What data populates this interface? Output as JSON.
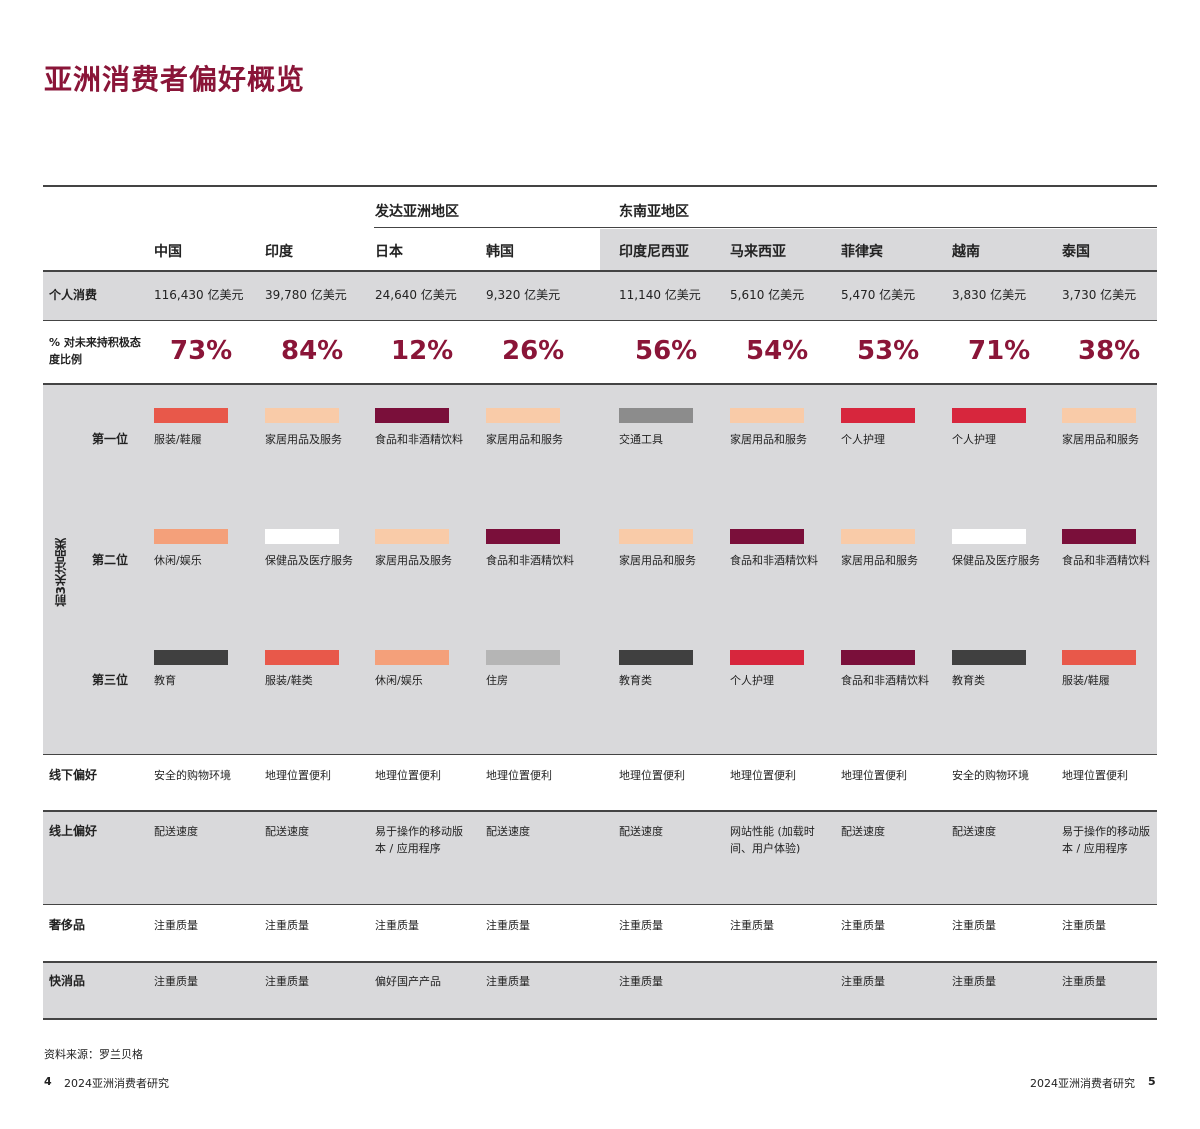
{
  "title": "亚洲消费者偏好概览",
  "groups": {
    "developed": "发达亚洲地区",
    "southeast": "东南亚地区"
  },
  "countries": [
    "中国",
    "印度",
    "日本",
    "韩国",
    "印度尼西亚",
    "马来西亚",
    "菲律宾",
    "越南",
    "泰国"
  ],
  "row_labels": {
    "consumption": "个人消费",
    "attitude": "% 对未来持积极态度比例",
    "top3": "前3关注品类",
    "rank1": "第一位",
    "rank2": "第二位",
    "rank3": "第三位",
    "offline": "线下偏好",
    "online": "线上偏好",
    "luxury": "奢侈品",
    "fmcg": "快消品"
  },
  "consumption": [
    "116,430 亿美元",
    "39,780 亿美元",
    "24,640 亿美元",
    "9,320 亿美元",
    "11,140 亿美元",
    "5,610 亿美元",
    "5,470 亿美元",
    "3,830 亿美元",
    "3,730 亿美元"
  ],
  "attitude": [
    "73%",
    "84%",
    "12%",
    "26%",
    "56%",
    "54%",
    "53%",
    "71%",
    "38%"
  ],
  "rank1": [
    {
      "text": "服装/鞋履",
      "color": "#e8584a"
    },
    {
      "text": "家居用品及服务",
      "color": "#f9cba8"
    },
    {
      "text": "食品和非酒精饮料",
      "color": "#7a0f3a"
    },
    {
      "text": "家居用品和服务",
      "color": "#f9cba8"
    },
    {
      "text": "交通工具",
      "color": "#8c8c8c"
    },
    {
      "text": "家居用品和服务",
      "color": "#f9cba8"
    },
    {
      "text": "个人护理",
      "color": "#d7263d"
    },
    {
      "text": "个人护理",
      "color": "#d7263d"
    },
    {
      "text": "家居用品和服务",
      "color": "#f9cba8"
    }
  ],
  "rank2": [
    {
      "text": "休闲/娱乐",
      "color": "#f4a07a"
    },
    {
      "text": "保健品及医疗服务",
      "color": "#ffffff"
    },
    {
      "text": "家居用品及服务",
      "color": "#f9cba8"
    },
    {
      "text": "食品和非酒精饮料",
      "color": "#7a0f3a"
    },
    {
      "text": "家居用品和服务",
      "color": "#f9cba8"
    },
    {
      "text": "食品和非酒精饮料",
      "color": "#7a0f3a"
    },
    {
      "text": "家居用品和服务",
      "color": "#f9cba8"
    },
    {
      "text": "保健品及医疗服务",
      "color": "#ffffff"
    },
    {
      "text": "食品和非酒精饮料",
      "color": "#7a0f3a"
    }
  ],
  "rank3": [
    {
      "text": "教育",
      "color": "#404040"
    },
    {
      "text": "服装/鞋类",
      "color": "#e8584a"
    },
    {
      "text": "休闲/娱乐",
      "color": "#f4a07a"
    },
    {
      "text": "住房",
      "color": "#b5b5b5"
    },
    {
      "text": "教育类",
      "color": "#404040"
    },
    {
      "text": "个人护理",
      "color": "#d7263d"
    },
    {
      "text": "食品和非酒精饮料",
      "color": "#7a0f3a"
    },
    {
      "text": "教育类",
      "color": "#404040"
    },
    {
      "text": "服装/鞋履",
      "color": "#e8584a"
    }
  ],
  "offline": [
    "安全的购物环境",
    "地理位置便利",
    "地理位置便利",
    "地理位置便利",
    "地理位置便利",
    "地理位置便利",
    "地理位置便利",
    "安全的购物环境",
    "地理位置便利"
  ],
  "online": [
    "配送速度",
    "配送速度",
    "易于操作的移动版本 / 应用程序",
    "配送速度",
    "配送速度",
    "网站性能 (加载时间、用户体验)",
    "配送速度",
    "配送速度",
    "易于操作的移动版本 / 应用程序"
  ],
  "luxury": [
    "注重质量",
    "注重质量",
    "注重质量",
    "注重质量",
    "注重质量",
    "注重质量",
    "注重质量",
    "注重质量",
    "注重质量"
  ],
  "fmcg": [
    "注重质量",
    "注重质量",
    "偏好国产产品",
    "注重质量",
    "注重质量",
    "",
    "注重质量",
    "注重质量",
    "注重质量"
  ],
  "source": "资料来源：罗兰贝格",
  "footer_left_page": "4",
  "footer_left_text": "2024亚洲消费者研究",
  "footer_right_text": "2024亚洲消费者研究",
  "footer_right_page": "5",
  "colors": {
    "accent": "#8a1538",
    "gray_band": "#d9d9db"
  }
}
